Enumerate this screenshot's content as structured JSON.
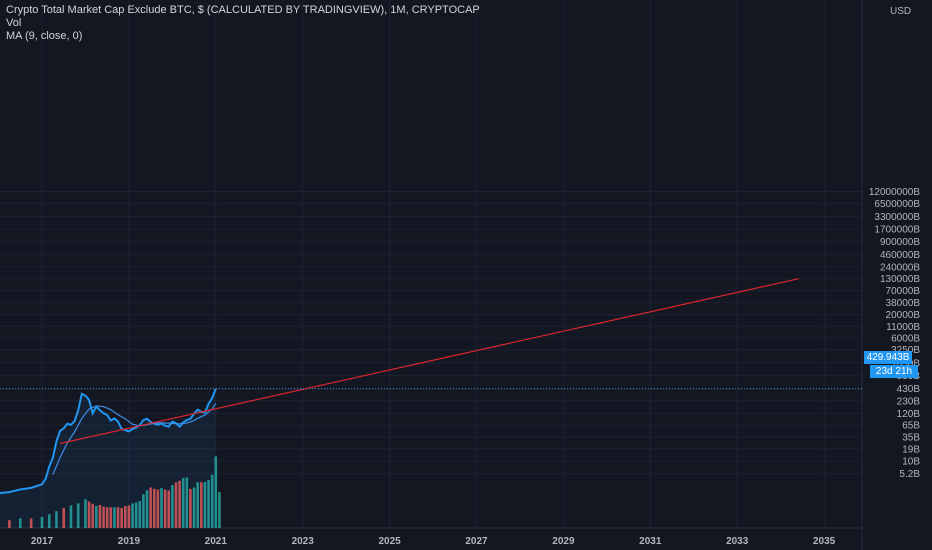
{
  "legend": {
    "title": "Crypto Total Market Cap Exclude BTC, $ (CALCULATED BY TRADINGVIEW), 1M, CRYPTOCAP",
    "vol": "Vol",
    "ma": "MA (9, close, 0)"
  },
  "price_axis": {
    "currency": "USD",
    "last_price": "429.943B",
    "countdown": "23d 21h"
  },
  "colors": {
    "background": "#131722",
    "grid": "#1e2230",
    "price_line": "#2196f3",
    "ma_line": "#3d8ee6",
    "trend_line": "#d9262f",
    "volume_up": "#26a69a",
    "volume_down": "#ef5350",
    "axis_text": "#b2b5be"
  },
  "chart_data": {
    "type": "line",
    "title": "Crypto Total Market Cap Exclude BTC, $ (CALCULATED BY TRADINGVIEW), 1M, CRYPTOCAP",
    "y_scale": "log",
    "y_ticks": [
      "12000000B",
      "6500000B",
      "3300000B",
      "1700000B",
      "900000B",
      "460000B",
      "240000B",
      "130000B",
      "70000B",
      "38000B",
      "20000B",
      "11000B",
      "6000B",
      "3250B",
      "1650B",
      "850B",
      "430B",
      "230B",
      "120B",
      "65B",
      "35B",
      "19B",
      "10B",
      "5.2B"
    ],
    "x_ticks": [
      "2017",
      "2019",
      "2021",
      "2023",
      "2025",
      "2027",
      "2029",
      "2031",
      "2033",
      "2035"
    ],
    "series": [
      {
        "name": "Crypto Total Market Cap Exclude BTC",
        "points": [
          [
            "2016-01",
            1.9
          ],
          [
            "2016-04",
            2.0
          ],
          [
            "2016-07",
            2.3
          ],
          [
            "2016-10",
            2.5
          ],
          [
            "2017-01",
            3.0
          ],
          [
            "2017-02",
            4.0
          ],
          [
            "2017-03",
            7.5
          ],
          [
            "2017-04",
            12
          ],
          [
            "2017-05",
            28
          ],
          [
            "2017-06",
            48
          ],
          [
            "2017-07",
            55
          ],
          [
            "2017-08",
            70
          ],
          [
            "2017-09",
            66
          ],
          [
            "2017-10",
            80
          ],
          [
            "2017-11",
            140
          ],
          [
            "2017-12",
            330
          ],
          [
            "2018-01",
            300
          ],
          [
            "2018-02",
            240
          ],
          [
            "2018-03",
            120
          ],
          [
            "2018-04",
            170
          ],
          [
            "2018-05",
            140
          ],
          [
            "2018-06",
            120
          ],
          [
            "2018-07",
            110
          ],
          [
            "2018-08",
            82
          ],
          [
            "2018-09",
            92
          ],
          [
            "2018-10",
            78
          ],
          [
            "2018-11",
            53
          ],
          [
            "2018-12",
            50
          ],
          [
            "2019-01",
            47
          ],
          [
            "2019-02",
            53
          ],
          [
            "2019-03",
            57
          ],
          [
            "2019-04",
            65
          ],
          [
            "2019-05",
            84
          ],
          [
            "2019-06",
            91
          ],
          [
            "2019-07",
            76
          ],
          [
            "2019-08",
            70
          ],
          [
            "2019-09",
            66
          ],
          [
            "2019-10",
            71
          ],
          [
            "2019-11",
            63
          ],
          [
            "2019-12",
            60
          ],
          [
            "2020-01",
            78
          ],
          [
            "2020-02",
            72
          ],
          [
            "2020-03",
            60
          ],
          [
            "2020-04",
            75
          ],
          [
            "2020-05",
            85
          ],
          [
            "2020-06",
            90
          ],
          [
            "2020-07",
            118
          ],
          [
            "2020-08",
            145
          ],
          [
            "2020-09",
            130
          ],
          [
            "2020-10",
            125
          ],
          [
            "2020-11",
            195
          ],
          [
            "2020-12",
            265
          ],
          [
            "2021-01",
            429.943
          ]
        ]
      },
      {
        "name": "MA (9, close, 0)",
        "points": [
          [
            "2017-04",
            5.0
          ],
          [
            "2017-06",
            12
          ],
          [
            "2017-08",
            26
          ],
          [
            "2017-10",
            46
          ],
          [
            "2017-12",
            92
          ],
          [
            "2018-02",
            150
          ],
          [
            "2018-04",
            175
          ],
          [
            "2018-06",
            170
          ],
          [
            "2018-08",
            145
          ],
          [
            "2018-10",
            112
          ],
          [
            "2018-12",
            90
          ],
          [
            "2019-02",
            68
          ],
          [
            "2019-04",
            62
          ],
          [
            "2019-06",
            66
          ],
          [
            "2019-08",
            72
          ],
          [
            "2019-10",
            73
          ],
          [
            "2019-12",
            72
          ],
          [
            "2020-02",
            70
          ],
          [
            "2020-04",
            70
          ],
          [
            "2020-06",
            76
          ],
          [
            "2020-08",
            92
          ],
          [
            "2020-10",
            110
          ],
          [
            "2020-12",
            150
          ],
          [
            "2021-01",
            200
          ]
        ]
      },
      {
        "name": "Trend line",
        "points": [
          [
            "2017-06",
            25
          ],
          [
            "2034-06",
            130000
          ]
        ]
      }
    ],
    "volume": [
      {
        "x": "2016-01",
        "v": 0.3,
        "up": true
      },
      {
        "x": "2016-04",
        "v": 0.3,
        "up": false
      },
      {
        "x": "2016-07",
        "v": 0.4,
        "up": true
      },
      {
        "x": "2016-10",
        "v": 0.4,
        "up": false
      },
      {
        "x": "2017-01",
        "v": 0.5,
        "up": true
      },
      {
        "x": "2017-03",
        "v": 0.7,
        "up": true
      },
      {
        "x": "2017-05",
        "v": 1.0,
        "up": true
      },
      {
        "x": "2017-07",
        "v": 1.4,
        "up": false
      },
      {
        "x": "2017-09",
        "v": 1.8,
        "up": true
      },
      {
        "x": "2017-11",
        "v": 2.2,
        "up": true
      },
      {
        "x": "2018-01",
        "v": 3.2,
        "up": true
      },
      {
        "x": "2018-02",
        "v": 2.6,
        "up": false
      },
      {
        "x": "2018-03",
        "v": 2.1,
        "up": false
      },
      {
        "x": "2018-04",
        "v": 1.7,
        "up": true
      },
      {
        "x": "2018-05",
        "v": 1.9,
        "up": false
      },
      {
        "x": "2018-06",
        "v": 1.6,
        "up": false
      },
      {
        "x": "2018-07",
        "v": 1.5,
        "up": false
      },
      {
        "x": "2018-08",
        "v": 1.5,
        "up": false
      },
      {
        "x": "2018-09",
        "v": 1.5,
        "up": true
      },
      {
        "x": "2018-10",
        "v": 1.5,
        "up": false
      },
      {
        "x": "2018-11",
        "v": 1.4,
        "up": false
      },
      {
        "x": "2018-12",
        "v": 1.7,
        "up": false
      },
      {
        "x": "2019-01",
        "v": 1.8,
        "up": false
      },
      {
        "x": "2019-02",
        "v": 2.2,
        "up": true
      },
      {
        "x": "2019-03",
        "v": 2.4,
        "up": true
      },
      {
        "x": "2019-04",
        "v": 2.7,
        "up": true
      },
      {
        "x": "2019-05",
        "v": 5.0,
        "up": true
      },
      {
        "x": "2019-06",
        "v": 7.0,
        "up": true
      },
      {
        "x": "2019-07",
        "v": 9.0,
        "up": false
      },
      {
        "x": "2019-08",
        "v": 8.0,
        "up": false
      },
      {
        "x": "2019-09",
        "v": 7.5,
        "up": false
      },
      {
        "x": "2019-10",
        "v": 8.5,
        "up": true
      },
      {
        "x": "2019-11",
        "v": 7.5,
        "up": false
      },
      {
        "x": "2019-12",
        "v": 7.0,
        "up": false
      },
      {
        "x": "2020-01",
        "v": 11.0,
        "up": true
      },
      {
        "x": "2020-02",
        "v": 14.0,
        "up": false
      },
      {
        "x": "2020-03",
        "v": 16.0,
        "up": false
      },
      {
        "x": "2020-04",
        "v": 20.0,
        "up": true
      },
      {
        "x": "2020-05",
        "v": 21.0,
        "up": true
      },
      {
        "x": "2020-06",
        "v": 8.0,
        "up": false
      },
      {
        "x": "2020-07",
        "v": 9.0,
        "up": true
      },
      {
        "x": "2020-08",
        "v": 14.0,
        "up": true
      },
      {
        "x": "2020-09",
        "v": 14.0,
        "up": false
      },
      {
        "x": "2020-10",
        "v": 14.5,
        "up": true
      },
      {
        "x": "2020-11",
        "v": 17.0,
        "up": true
      },
      {
        "x": "2020-12",
        "v": 26.0,
        "up": true
      },
      {
        "x": "2021-01",
        "v": 120.0,
        "up": true
      },
      {
        "x": "2021-02",
        "v": 6.0,
        "up": true
      }
    ]
  }
}
